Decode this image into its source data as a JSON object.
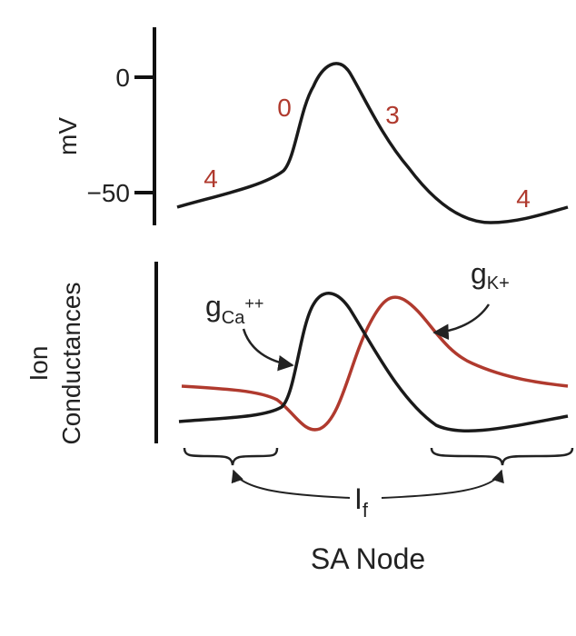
{
  "top_panel": {
    "y_label": "mV",
    "ticks": [
      "0",
      "−50"
    ],
    "phase_labels": [
      "4",
      "0",
      "3",
      "4"
    ]
  },
  "bottom_panel": {
    "y_label_lines": [
      "Ion",
      "Conductances"
    ],
    "g_ca": {
      "base": "g",
      "sub": "Ca",
      "sup": "++"
    },
    "g_k": {
      "base": "g",
      "sub": "K+"
    }
  },
  "current_label": {
    "base": "I",
    "sub": "f"
  },
  "caption": "SA Node"
}
